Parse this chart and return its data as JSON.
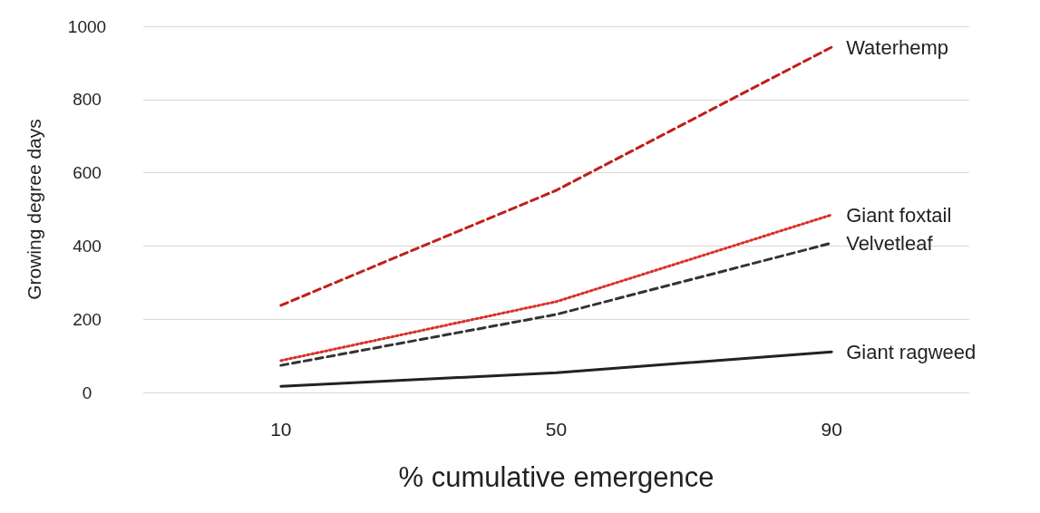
{
  "chart_data": {
    "type": "line",
    "xlabel": "% cumulative emergence",
    "ylabel": "Growing degree days",
    "categories": [
      "10",
      "50",
      "90"
    ],
    "series": [
      {
        "name": "Waterhemp",
        "color": "#c0201b",
        "line_style": "dashed",
        "values": [
          238,
          552,
          943
        ]
      },
      {
        "name": "Giant foxtail",
        "color": "#d9302a",
        "line_style": "dotted",
        "values": [
          87,
          248,
          485
        ]
      },
      {
        "name": "Velvetleaf",
        "color": "#333333",
        "line_style": "dashed",
        "values": [
          74,
          213,
          408
        ]
      },
      {
        "name": "Giant ragweed",
        "color": "#222222",
        "line_style": "solid",
        "values": [
          17,
          54,
          111
        ]
      }
    ],
    "ylim": [
      0,
      1000
    ],
    "yticks": [
      0,
      200,
      400,
      600,
      800,
      1000
    ],
    "grid": "y",
    "legend": false,
    "marker": "none"
  }
}
